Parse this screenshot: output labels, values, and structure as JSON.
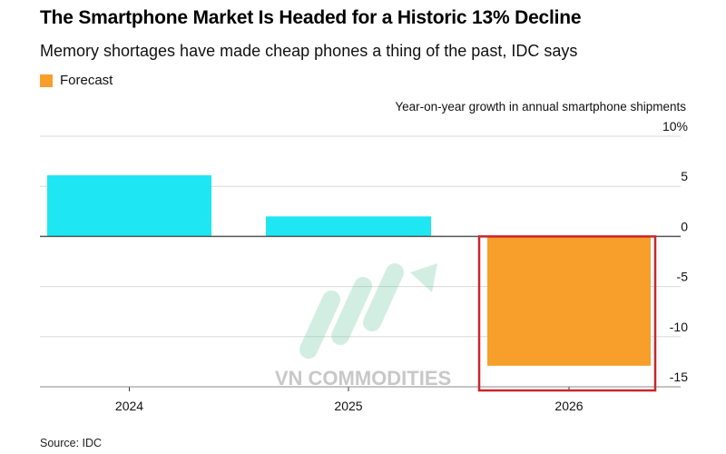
{
  "chart_data": {
    "type": "bar",
    "title": "The Smartphone Market Is Headed for a Historic 13% Decline",
    "subtitle": "Memory shortages have made cheap phones a thing of the past, IDC says",
    "legend": [
      {
        "name": "Forecast",
        "color": "#F79E2B"
      }
    ],
    "legend_placement": "top-left",
    "ylabel": "Year-on-year growth in annual smartphone shipments",
    "categories": [
      "2024",
      "2025",
      "2026"
    ],
    "values": [
      6.1,
      2.0,
      -12.9
    ],
    "forecast": [
      false,
      false,
      true
    ],
    "colors": {
      "actual": "#1EE6F2",
      "forecast": "#F79E2B",
      "highlight_box": "#C8262B"
    },
    "highlighted_category": "2026",
    "ylim": [
      -15,
      10
    ],
    "yticks": [
      10,
      5,
      0,
      -5,
      -10,
      -15
    ],
    "ytick_labels": [
      "10%",
      "5",
      "0",
      "-5",
      "-10",
      "-15"
    ],
    "y_axis_side": "right",
    "grid": true,
    "source": "Source: IDC",
    "watermark": "VN COMMODITIES"
  }
}
